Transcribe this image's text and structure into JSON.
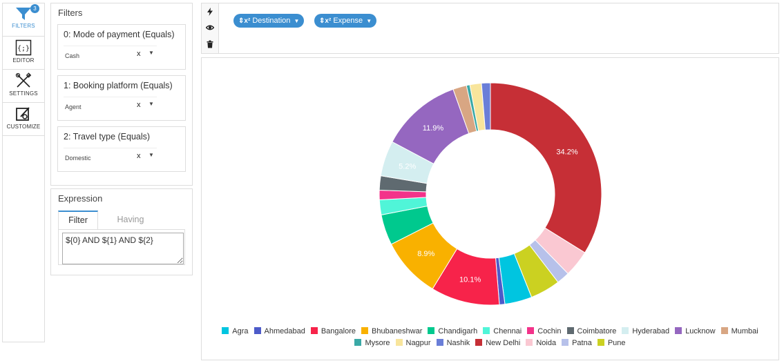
{
  "rail": {
    "badge": "3",
    "items": [
      {
        "label": "FILTERS"
      },
      {
        "label": "EDITOR"
      },
      {
        "label": "SETTINGS"
      },
      {
        "label": "CUSTOMIZE"
      }
    ]
  },
  "filters": {
    "title": "Filters",
    "cards": [
      {
        "title": "0: Mode of payment (Equals)",
        "value": "Cash"
      },
      {
        "title": "1: Booking platform (Equals)",
        "value": "Agent"
      },
      {
        "title": "2: Travel type (Equals)",
        "value": "Domestic"
      }
    ],
    "clear_label": "x"
  },
  "expression": {
    "title": "Expression",
    "tabs": [
      "Filter",
      "Having"
    ],
    "value": "${0} AND ${1} AND ${2}"
  },
  "toolbar": {
    "pills": [
      {
        "symbol": "⇕x²",
        "label": "Destination"
      },
      {
        "symbol": "⇕x²",
        "label": "Expense"
      }
    ],
    "icons": [
      "lightning-icon",
      "eye-icon",
      "trash-icon"
    ]
  },
  "chart_data": {
    "type": "pie",
    "donut": true,
    "categories": [
      "Agra",
      "Ahmedabad",
      "Bangalore",
      "Bhubaneshwar",
      "Chandigarh",
      "Chennai",
      "Cochin",
      "Coimbatore",
      "Hyderabad",
      "Lucknow",
      "Mumbai",
      "Mysore",
      "Nagpur",
      "Nashik",
      "New Delhi",
      "Noida",
      "Patna",
      "Pune"
    ],
    "colors": [
      "#00c5e0",
      "#4d5bc9",
      "#f7234a",
      "#f9b100",
      "#00c98e",
      "#50f5d8",
      "#f3338a",
      "#5f6a70",
      "#d4eef0",
      "#9567c0",
      "#d8a683",
      "#3aa9a6",
      "#f8e59c",
      "#6a7ed8",
      "#c62f36",
      "#fac8d2",
      "#b7c1ea",
      "#cbd121"
    ],
    "values": [
      4.0,
      0.8,
      10.1,
      8.9,
      4.5,
      2.2,
      1.4,
      2.1,
      5.2,
      11.9,
      2.0,
      0.5,
      1.7,
      1.3,
      34.2,
      3.9,
      1.9,
      4.4
    ],
    "data_labels": {
      "Bangalore": "10.1%",
      "Bhubaneshwar": "8.9%",
      "Hyderabad": "5.2%",
      "Lucknow": "11.9%",
      "New Delhi": "34.2%"
    },
    "legend_position": "bottom"
  }
}
